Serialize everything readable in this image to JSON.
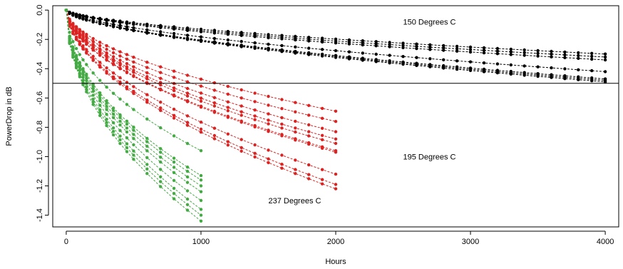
{
  "chart_data": {
    "type": "scatter",
    "title": "",
    "xlabel": "Hours",
    "ylabel": "PowerDrop in dB",
    "xlim": [
      -100,
      4100
    ],
    "ylim": [
      -1.48,
      0.03
    ],
    "xticks": [
      0,
      1000,
      2000,
      3000,
      4000
    ],
    "xtick_labels": [
      "0",
      "1000",
      "2000",
      "3000",
      "4000"
    ],
    "yticks": [
      0.0,
      -0.2,
      -0.4,
      -0.6,
      -0.8,
      -1.0,
      -1.2,
      -1.4
    ],
    "ytick_labels": [
      "0.0",
      "-0.2",
      "-0.4",
      "-0.6",
      "-0.8",
      "-1.0",
      "-1.2",
      "-1.4"
    ],
    "hline": -0.5,
    "grid": false,
    "style": "points connected by dashed lines",
    "annotations": [
      {
        "text": "150 Degrees C",
        "x": 2500,
        "y": -0.1
      },
      {
        "text": "195 Degrees C",
        "x": 2500,
        "y": -1.02
      },
      {
        "text": "237 Degrees C",
        "x": 1500,
        "y": -1.32
      }
    ],
    "groups": [
      {
        "label": "150 Degrees C",
        "color": "#000000",
        "x": [
          0,
          25,
          50,
          75,
          100,
          125,
          150,
          200,
          250,
          300,
          350,
          400,
          450,
          500,
          600,
          700,
          800,
          900,
          1000,
          1100,
          1200,
          1300,
          1400,
          1500,
          1600,
          1700,
          1800,
          1900,
          2000,
          2100,
          2200,
          2300,
          2400,
          2500,
          2600,
          2700,
          2800,
          2900,
          3000,
          3100,
          3200,
          3300,
          3400,
          3500,
          3600,
          3700,
          3800,
          3900,
          4000
        ],
        "endpoints": [
          -0.3,
          -0.32,
          -0.34,
          -0.42,
          -0.47,
          -0.48,
          -0.49
        ]
      },
      {
        "label": "195 Degrees C",
        "color": "#dd2222",
        "x": [
          0,
          25,
          50,
          75,
          100,
          125,
          150,
          200,
          250,
          300,
          350,
          400,
          450,
          500,
          600,
          700,
          800,
          900,
          1000,
          1100,
          1200,
          1300,
          1400,
          1500,
          1600,
          1700,
          1800,
          1900,
          2000
        ],
        "endpoints": [
          -0.69,
          -0.76,
          -0.83,
          -0.88,
          -0.91,
          -0.96,
          -0.97,
          -1.12,
          -1.19,
          -1.22
        ]
      },
      {
        "label": "237 Degrees C",
        "color": "#44aa44",
        "x": [
          0,
          25,
          50,
          75,
          100,
          125,
          150,
          200,
          250,
          300,
          350,
          400,
          450,
          500,
          600,
          700,
          800,
          900,
          1000
        ],
        "endpoints": [
          -0.96,
          -1.13,
          -1.16,
          -1.2,
          -1.24,
          -1.3,
          -1.36,
          -1.4,
          -1.44
        ]
      }
    ]
  }
}
